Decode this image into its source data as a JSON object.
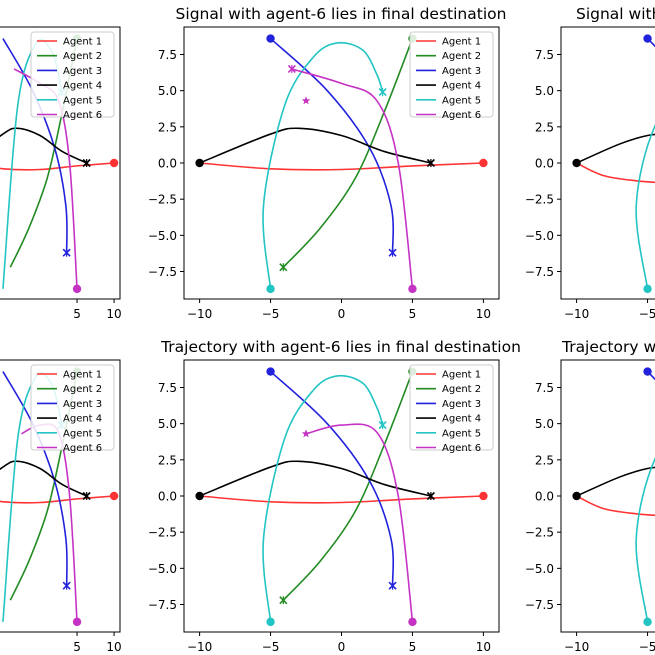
{
  "legend_entries": [
    "Agent 1",
    "Agent 2",
    "Agent 3",
    "Agent 4",
    "Agent 5",
    "Agent 6"
  ],
  "colors": [
    "#ff3333",
    "#228b22",
    "#2222dd",
    "#000000",
    "#22c4c4",
    "#c533c5"
  ],
  "chart_data": [
    {
      "type": "line",
      "panel": "top-left",
      "title": "",
      "xlim": [
        -10.8,
        10.8
      ],
      "ylim": [
        -9.4,
        9.4
      ],
      "xticks": [
        5,
        10
      ],
      "yticks": [],
      "grid": false,
      "legend_loc": "upper right",
      "series": [
        {
          "name": "Agent 1",
          "x": [
            -10,
            -5,
            0,
            5,
            10
          ],
          "y": [
            0,
            -0.4,
            -0.45,
            -0.2,
            0
          ],
          "start": [
            10,
            0
          ],
          "cross": null,
          "star": null
        },
        {
          "name": "Agent 2",
          "x": [
            -4,
            -1.5,
            1,
            3,
            5
          ],
          "y": [
            -7.2,
            -4.5,
            -1,
            3.5,
            8.6
          ],
          "start": [
            5,
            8.6
          ],
          "cross": null,
          "star": null
        },
        {
          "name": "Agent 3",
          "x": [
            -5,
            -1,
            2,
            3.5,
            3.6
          ],
          "y": [
            8.6,
            5,
            1,
            -3,
            -6.2
          ],
          "start": null,
          "cross": [
            3.6,
            -6.2
          ],
          "star": null
        },
        {
          "name": "Agent 4",
          "x": [
            -10,
            -5,
            -3,
            0,
            3,
            6.3
          ],
          "y": [
            0,
            2,
            2.4,
            1.9,
            0.8,
            0
          ],
          "start": null,
          "cross": [
            6.3,
            0
          ],
          "star": null
        },
        {
          "name": "Agent 5",
          "x": [
            -5,
            -3,
            -0.5,
            1.5,
            2.5,
            2.9
          ],
          "y": [
            -8.7,
            4,
            8.3,
            7.8,
            6.1,
            4.9
          ],
          "start": null,
          "cross": [
            2.9,
            4.9
          ],
          "star": null
        },
        {
          "name": "Agent 6",
          "x": [
            -3.5,
            0,
            2.5,
            4,
            5
          ],
          "y": [
            6.5,
            5.5,
            4.3,
            0,
            -8.7
          ],
          "start": [
            5,
            -8.7
          ],
          "cross": null,
          "star": null
        }
      ]
    },
    {
      "type": "line",
      "panel": "top-center",
      "title": "Signal with agent-6 lies in final destination",
      "xlim": [
        -11.1,
        11.1
      ],
      "ylim": [
        -9.4,
        9.4
      ],
      "xticks": [
        -10,
        -5,
        0,
        5,
        10
      ],
      "yticks": [
        -7.5,
        -5.0,
        -2.5,
        0.0,
        2.5,
        5.0,
        7.5
      ],
      "grid": false,
      "legend_loc": "upper right",
      "series": [
        {
          "name": "Agent 1",
          "x": [
            -10,
            -5,
            0,
            5,
            10
          ],
          "y": [
            0,
            -0.4,
            -0.45,
            -0.2,
            0
          ],
          "start": [
            10,
            0
          ],
          "cross": null,
          "star": null
        },
        {
          "name": "Agent 2",
          "x": [
            -4.1,
            -1.5,
            1,
            3,
            5
          ],
          "y": [
            -7.2,
            -4.5,
            -1,
            3.5,
            8.6
          ],
          "start": [
            5,
            8.6
          ],
          "cross": [
            -4.1,
            -7.2
          ],
          "star": null
        },
        {
          "name": "Agent 3",
          "x": [
            -5,
            -1,
            2,
            3.5,
            3.6
          ],
          "y": [
            8.6,
            5,
            1,
            -3,
            -6.2
          ],
          "start": [
            -5,
            8.6
          ],
          "cross": [
            3.6,
            -6.2
          ],
          "star": null
        },
        {
          "name": "Agent 4",
          "x": [
            -10,
            -5,
            -3,
            0,
            3,
            6.3
          ],
          "y": [
            0,
            2,
            2.4,
            1.9,
            0.8,
            0
          ],
          "start": [
            -10,
            0
          ],
          "cross": [
            6.3,
            0
          ],
          "star": null
        },
        {
          "name": "Agent 5",
          "x": [
            -5,
            -5.5,
            -4,
            -2,
            -0.3,
            1.5,
            2.5,
            2.9
          ],
          "y": [
            -8.7,
            -3,
            4,
            7.3,
            8.3,
            7.8,
            6.1,
            4.9
          ],
          "start": [
            -5,
            -8.7
          ],
          "cross": [
            2.9,
            4.9
          ],
          "star": null
        },
        {
          "name": "Agent 6",
          "x": [
            -3.5,
            0,
            2.5,
            4,
            5
          ],
          "y": [
            6.5,
            5.5,
            4.3,
            0,
            -8.7
          ],
          "start": [
            5,
            -8.7
          ],
          "cross": [
            -3.5,
            6.5
          ],
          "star": [
            -2.5,
            4.3
          ]
        }
      ]
    },
    {
      "type": "line",
      "panel": "top-right",
      "title": "Signal with",
      "xlim": [
        -11.1,
        11.1
      ],
      "ylim": [
        -9.4,
        9.4
      ],
      "xticks": [
        -10,
        -5
      ],
      "yticks": [
        -7.5,
        -5.0,
        -2.5,
        0.0,
        2.5,
        5.0,
        7.5
      ],
      "grid": false,
      "legend_loc": "upper right",
      "series": [
        {
          "name": "Agent 1",
          "x": [
            -10,
            -8,
            -5,
            -2
          ],
          "y": [
            0,
            -0.9,
            -1.3,
            -1.4
          ],
          "start": null,
          "cross": null,
          "star": null
        },
        {
          "name": "Agent 3",
          "x": [
            -5,
            -4
          ],
          "y": [
            8.6,
            7.6
          ],
          "start": [
            -5,
            8.6
          ],
          "cross": null,
          "star": null
        },
        {
          "name": "Agent 4",
          "x": [
            -10,
            -7,
            -5,
            -3.5,
            -2
          ],
          "y": [
            0,
            1.3,
            1.9,
            2,
            1.9
          ],
          "start": [
            -10,
            0
          ],
          "cross": null,
          "star": null
        },
        {
          "name": "Agent 5",
          "x": [
            -5,
            -5.8,
            -4.5,
            -2
          ],
          "y": [
            -8.7,
            -3,
            2.5,
            5.5
          ],
          "start": [
            -5,
            -8.7
          ],
          "cross": null,
          "star": null
        }
      ]
    },
    {
      "type": "line",
      "panel": "bottom-left",
      "title": "",
      "xlim": [
        -10.8,
        10.8
      ],
      "ylim": [
        -9.4,
        9.4
      ],
      "xticks": [
        5,
        10
      ],
      "yticks": [],
      "grid": false,
      "legend_loc": "upper right",
      "series": [
        {
          "name": "Agent 1",
          "x": [
            -10,
            -5,
            0,
            5,
            10
          ],
          "y": [
            0,
            -0.4,
            -0.45,
            -0.2,
            0
          ],
          "start": [
            10,
            0
          ],
          "cross": null,
          "star": null
        },
        {
          "name": "Agent 2",
          "x": [
            -4,
            -1.5,
            1,
            3,
            5
          ],
          "y": [
            -7.2,
            -4.5,
            -1,
            3.5,
            8.6
          ],
          "start": [
            5,
            8.6
          ],
          "cross": null,
          "star": null
        },
        {
          "name": "Agent 3",
          "x": [
            -5,
            -1,
            2,
            3.5,
            3.6
          ],
          "y": [
            8.6,
            5,
            1,
            -3,
            -6.2
          ],
          "start": null,
          "cross": [
            3.6,
            -6.2
          ],
          "star": null
        },
        {
          "name": "Agent 4",
          "x": [
            -10,
            -5,
            -3,
            0,
            3,
            6.3
          ],
          "y": [
            0,
            2,
            2.4,
            1.9,
            0.8,
            0
          ],
          "start": null,
          "cross": [
            6.3,
            0
          ],
          "star": null
        },
        {
          "name": "Agent 5",
          "x": [
            -5,
            -3,
            -0.5,
            1.5,
            2.5,
            2.9
          ],
          "y": [
            -8.7,
            4,
            8.3,
            7.8,
            6.1,
            4.9
          ],
          "start": null,
          "cross": [
            2.9,
            4.9
          ],
          "star": null
        },
        {
          "name": "Agent 6",
          "x": [
            -2.5,
            0,
            2.5,
            4,
            5
          ],
          "y": [
            4.3,
            4.9,
            4.4,
            0,
            -8.7
          ],
          "start": [
            5,
            -8.7
          ],
          "cross": null,
          "star": null
        }
      ]
    },
    {
      "type": "line",
      "panel": "bottom-center",
      "title": "Trajectory with agent-6 lies in final destination",
      "xlim": [
        -11.1,
        11.1
      ],
      "ylim": [
        -9.4,
        9.4
      ],
      "xticks": [
        -10,
        -5,
        0,
        5,
        10
      ],
      "yticks": [
        -7.5,
        -5.0,
        -2.5,
        0.0,
        2.5,
        5.0,
        7.5
      ],
      "grid": false,
      "legend_loc": "upper right",
      "series": [
        {
          "name": "Agent 1",
          "x": [
            -10,
            -5,
            0,
            5,
            10
          ],
          "y": [
            0,
            -0.4,
            -0.45,
            -0.2,
            0
          ],
          "start": [
            10,
            0
          ],
          "cross": null,
          "star": null
        },
        {
          "name": "Agent 2",
          "x": [
            -4.1,
            -1.5,
            1,
            3,
            5
          ],
          "y": [
            -7.2,
            -4.5,
            -1,
            3.5,
            8.6
          ],
          "start": [
            5,
            8.6
          ],
          "cross": [
            -4.1,
            -7.2
          ],
          "star": null
        },
        {
          "name": "Agent 3",
          "x": [
            -5,
            -1,
            2,
            3.5,
            3.6
          ],
          "y": [
            8.6,
            5,
            1,
            -3,
            -6.2
          ],
          "start": [
            -5,
            8.6
          ],
          "cross": [
            3.6,
            -6.2
          ],
          "star": null
        },
        {
          "name": "Agent 4",
          "x": [
            -10,
            -5,
            -3,
            0,
            3,
            6.3
          ],
          "y": [
            0,
            2,
            2.4,
            1.9,
            0.8,
            0
          ],
          "start": [
            -10,
            0
          ],
          "cross": [
            6.3,
            0
          ],
          "star": null
        },
        {
          "name": "Agent 5",
          "x": [
            -5,
            -5.5,
            -4,
            -2,
            -0.3,
            1.5,
            2.5,
            2.9
          ],
          "y": [
            -8.7,
            -3,
            4,
            7.3,
            8.3,
            7.8,
            6.1,
            4.9
          ],
          "start": [
            -5,
            -8.7
          ],
          "cross": [
            2.9,
            4.9
          ],
          "star": null
        },
        {
          "name": "Agent 6",
          "x": [
            -2.5,
            0,
            2.5,
            4,
            5
          ],
          "y": [
            4.3,
            4.9,
            4.4,
            0,
            -8.7
          ],
          "start": [
            5,
            -8.7
          ],
          "cross": null,
          "star": [
            -2.5,
            4.3
          ]
        }
      ]
    },
    {
      "type": "line",
      "panel": "bottom-right",
      "title": "Trajectory wi",
      "xlim": [
        -11.1,
        11.1
      ],
      "ylim": [
        -9.4,
        9.4
      ],
      "xticks": [
        -10,
        -5
      ],
      "yticks": [
        -7.5,
        -5.0,
        -2.5,
        0.0,
        2.5,
        5.0,
        7.5
      ],
      "grid": false,
      "legend_loc": "upper right",
      "series": [
        {
          "name": "Agent 1",
          "x": [
            -10,
            -8,
            -5,
            -2
          ],
          "y": [
            0,
            -0.9,
            -1.3,
            -1.4
          ],
          "start": null,
          "cross": null,
          "star": null
        },
        {
          "name": "Agent 3",
          "x": [
            -5,
            -4
          ],
          "y": [
            8.6,
            7.6
          ],
          "start": [
            -5,
            8.6
          ],
          "cross": null,
          "star": null
        },
        {
          "name": "Agent 4",
          "x": [
            -10,
            -7,
            -5,
            -3.5,
            -2
          ],
          "y": [
            0,
            1.3,
            1.9,
            2,
            1.9
          ],
          "start": [
            -10,
            0
          ],
          "cross": null,
          "star": null
        },
        {
          "name": "Agent 5",
          "x": [
            -5,
            -5.8,
            -4.5,
            -2
          ],
          "y": [
            -8.7,
            -3,
            2.5,
            5.5
          ],
          "start": [
            -5,
            -8.7
          ],
          "cross": null,
          "star": null
        }
      ]
    }
  ]
}
